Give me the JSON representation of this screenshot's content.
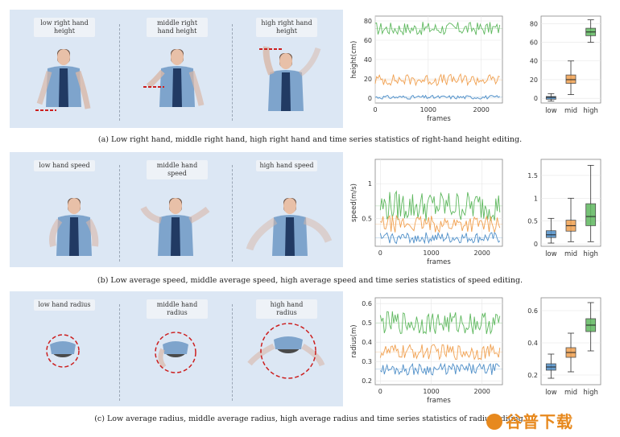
{
  "rows": [
    {
      "labels": [
        "low right hand height",
        "middle right hand height",
        "high right hand height"
      ],
      "caption": "(a) Low right hand, middle right hand, high right hand and time series statistics of right-hand height editing."
    },
    {
      "labels": [
        "low hand speed",
        "middle hand speed",
        "high hand speed"
      ],
      "caption": "(b) Low average speed, middle average speed, high average speed and time series statistics of speed editing."
    },
    {
      "labels": [
        "low hand radius",
        "middle hand radius",
        "high hand radius"
      ],
      "caption": "(c) Low average radius, middle average radius, high average radius and time series statistics of radius editing."
    }
  ],
  "colors": {
    "low": "#4f8fc8",
    "mid": "#f0a050",
    "high": "#5fb85f",
    "marker": "#cc1f1f"
  },
  "watermark": "谷普下载",
  "chart_data": [
    {
      "type": "line",
      "xlabel": "frames",
      "ylabel": "height(cm)",
      "xlim": [
        0,
        2400
      ],
      "ylim": [
        -5,
        85
      ],
      "xticks": [
        0,
        1000,
        2000
      ],
      "yticks": [
        0,
        20,
        40,
        60,
        80
      ],
      "series": [
        {
          "key": "high",
          "mean": 72,
          "amp": 7,
          "values_desc": "fluctuates 62-82"
        },
        {
          "key": "mid",
          "mean": 19,
          "amp": 6
        },
        {
          "key": "low",
          "mean": 1,
          "amp": 2
        }
      ]
    },
    {
      "type": "box",
      "categories": [
        "low",
        "mid",
        "high"
      ],
      "ylim": [
        -5,
        88
      ],
      "yticks": [
        0,
        20,
        40,
        60,
        80
      ],
      "boxes": [
        {
          "q1": -1,
          "median": 1,
          "q3": 2,
          "lo": -3,
          "hi": 5
        },
        {
          "q1": 16,
          "median": 20,
          "q3": 25,
          "lo": 4,
          "hi": 40
        },
        {
          "q1": 67,
          "median": 71,
          "q3": 75,
          "lo": 60,
          "hi": 84
        }
      ]
    },
    {
      "type": "line",
      "xlabel": "frames",
      "ylabel": "speed(m/s)",
      "xlim": [
        -100,
        2400
      ],
      "ylim": [
        0.1,
        1.35
      ],
      "xticks": [
        0,
        1000,
        2000
      ],
      "yticks": [
        0.5,
        1.0
      ],
      "series": [
        {
          "key": "high",
          "mean": 0.68,
          "amp": 0.22
        },
        {
          "key": "mid",
          "mean": 0.42,
          "amp": 0.12
        },
        {
          "key": "low",
          "mean": 0.22,
          "amp": 0.08
        }
      ]
    },
    {
      "type": "box",
      "categories": [
        "low",
        "mid",
        "high"
      ],
      "ylim": [
        -0.05,
        1.85
      ],
      "yticks": [
        0.0,
        0.5,
        1.0,
        1.5
      ],
      "boxes": [
        {
          "q1": 0.14,
          "median": 0.2,
          "q3": 0.29,
          "lo": 0.02,
          "hi": 0.56
        },
        {
          "q1": 0.28,
          "median": 0.4,
          "q3": 0.52,
          "lo": 0.05,
          "hi": 1.0
        },
        {
          "q1": 0.4,
          "median": 0.6,
          "q3": 0.88,
          "lo": 0.05,
          "hi": 1.72
        }
      ]
    },
    {
      "type": "line",
      "xlabel": "frames",
      "ylabel": "radius(m)",
      "xlim": [
        -100,
        2400
      ],
      "ylim": [
        0.18,
        0.63
      ],
      "xticks": [
        0,
        1000,
        2000
      ],
      "yticks": [
        0.2,
        0.3,
        0.4,
        0.5,
        0.6
      ],
      "series": [
        {
          "key": "high",
          "mean": 0.5,
          "amp": 0.06
        },
        {
          "key": "mid",
          "mean": 0.35,
          "amp": 0.04
        },
        {
          "key": "low",
          "mean": 0.26,
          "amp": 0.03
        }
      ]
    },
    {
      "type": "box",
      "categories": [
        "low",
        "mid",
        "high"
      ],
      "ylim": [
        0.14,
        0.68
      ],
      "yticks": [
        0.2,
        0.4,
        0.6
      ],
      "boxes": [
        {
          "q1": 0.23,
          "median": 0.25,
          "q3": 0.27,
          "lo": 0.18,
          "hi": 0.33
        },
        {
          "q1": 0.31,
          "median": 0.34,
          "q3": 0.37,
          "lo": 0.22,
          "hi": 0.46
        },
        {
          "q1": 0.47,
          "median": 0.51,
          "q3": 0.55,
          "lo": 0.35,
          "hi": 0.65
        }
      ]
    }
  ]
}
